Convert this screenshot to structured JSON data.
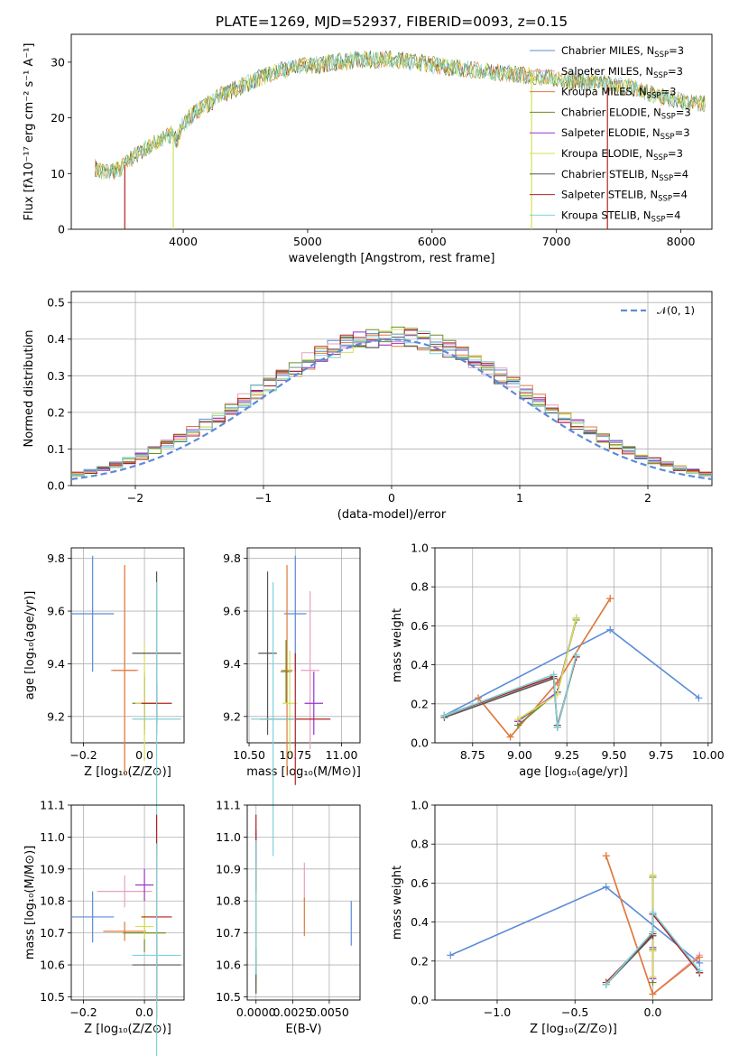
{
  "figure": {
    "title": "PLATE=1269, MJD=52937, FIBERID=0093, z=0.15",
    "colors": {
      "chabrier_miles": "#5B8BD9",
      "salpeter_miles": "#E6A0C4",
      "kroupa_miles": "#E07B39",
      "chabrier_elodie": "#6B8E23",
      "salpeter_elodie": "#9932CC",
      "kroupa_elodie": "#D4E157",
      "chabrier_stelib": "#555555",
      "salpeter_stelib": "#B22222",
      "kroupa_stelib": "#7DD3D8"
    }
  },
  "chart_data": [
    {
      "id": "spectrum",
      "type": "line",
      "xlabel": "wavelength [Angstrom, rest frame]",
      "ylabel": "Flux [fλ10⁻¹⁷ erg cm⁻² s⁻¹ A⁻¹]",
      "xlim": [
        3100,
        8250
      ],
      "ylim": [
        0,
        35
      ],
      "xticks": [
        "4000",
        "5000",
        "6000",
        "7000",
        "8000"
      ],
      "yticks": [
        "0",
        "10",
        "20",
        "30"
      ],
      "legend": [
        {
          "label": "Chabrier MILES, N",
          "sub": "SSP",
          "tail": "=3",
          "color": "chabrier_miles"
        },
        {
          "label": "Salpeter MILES, N",
          "sub": "SSP",
          "tail": "=3",
          "color": "salpeter_miles"
        },
        {
          "label": "Kroupa MILES, N",
          "sub": "SSP",
          "tail": "=3",
          "color": "kroupa_miles"
        },
        {
          "label": "Chabrier ELODIE, N",
          "sub": "SSP",
          "tail": "=3",
          "color": "chabrier_elodie"
        },
        {
          "label": "Salpeter ELODIE, N",
          "sub": "SSP",
          "tail": "=3",
          "color": "salpeter_elodie"
        },
        {
          "label": "Kroupa ELODIE, N",
          "sub": "SSP",
          "tail": "=3",
          "color": "kroupa_elodie"
        },
        {
          "label": "Chabrier STELIB, N",
          "sub": "SSP",
          "tail": "=4",
          "color": "chabrier_stelib"
        },
        {
          "label": "Salpeter STELIB, N",
          "sub": "SSP",
          "tail": "=4",
          "color": "salpeter_stelib"
        },
        {
          "label": "Kroupa STELIB, N",
          "sub": "SSP",
          "tail": "=4",
          "color": "kroupa_stelib"
        }
      ],
      "envelope": [
        [
          3290,
          11
        ],
        [
          3400,
          10
        ],
        [
          3500,
          11
        ],
        [
          3600,
          13
        ],
        [
          3700,
          14.5
        ],
        [
          3800,
          16
        ],
        [
          3900,
          17
        ],
        [
          3950,
          16
        ],
        [
          4000,
          19
        ],
        [
          4100,
          21
        ],
        [
          4200,
          22.5
        ],
        [
          4300,
          24
        ],
        [
          4400,
          25
        ],
        [
          4500,
          26
        ],
        [
          4600,
          27
        ],
        [
          4700,
          28
        ],
        [
          4800,
          28.5
        ],
        [
          4900,
          29
        ],
        [
          5000,
          29.5
        ],
        [
          5100,
          29.5
        ],
        [
          5200,
          30
        ],
        [
          5300,
          30
        ],
        [
          5400,
          30.5
        ],
        [
          5500,
          30.5
        ],
        [
          5600,
          30.5
        ],
        [
          5700,
          30.5
        ],
        [
          5800,
          30
        ],
        [
          5900,
          30
        ],
        [
          6000,
          29.5
        ],
        [
          6200,
          29
        ],
        [
          6400,
          28.5
        ],
        [
          6600,
          28
        ],
        [
          6800,
          27.5
        ],
        [
          7000,
          27
        ],
        [
          7200,
          26.5
        ],
        [
          7400,
          26
        ],
        [
          7600,
          25.5
        ],
        [
          7800,
          24
        ],
        [
          8000,
          23
        ],
        [
          8200,
          22.5
        ]
      ]
    },
    {
      "id": "residual_hist",
      "type": "bar",
      "xlabel": "(data-model)/error",
      "ylabel": "Normed distribution",
      "xlim": [
        -2.5,
        2.5
      ],
      "ylim": [
        0,
        0.53
      ],
      "xticks": [
        "−2",
        "−1",
        "0",
        "1",
        "2"
      ],
      "yticks": [
        "0.0",
        "0.1",
        "0.2",
        "0.3",
        "0.4",
        "0.5"
      ],
      "legend": [
        {
          "label": "𝒩(0, 1)",
          "color": "chabrier_miles"
        }
      ],
      "bin_width": 0.1
    },
    {
      "id": "age_vs_Z",
      "type": "scatter",
      "xlabel": "Z [log₁₀(Z/Z⊙)]",
      "ylabel": "age  [log₁₀(age/yr)]",
      "xlim": [
        -0.24,
        0.13
      ],
      "ylim": [
        9.1,
        9.84
      ],
      "xticks": [
        "−0.2",
        "0.0"
      ],
      "yticks": [
        "9.2",
        "9.4",
        "9.6",
        "9.8"
      ],
      "points": [
        {
          "x": -0.17,
          "y": 9.59,
          "xerr": 0.07,
          "yerr": 0.22,
          "color": "chabrier_miles"
        },
        {
          "x": -0.065,
          "y": 9.375,
          "xerr": 0.045,
          "yerr": 0.4,
          "color": "salpeter_miles"
        },
        {
          "x": -0.065,
          "y": 9.375,
          "xerr": 0.04,
          "yerr": 0.4,
          "color": "kroupa_miles"
        },
        {
          "x": 0.0,
          "y": 9.25,
          "xerr": 0.04,
          "yerr": 0.12,
          "color": "chabrier_elodie"
        },
        {
          "x": 0.0,
          "y": 9.25,
          "xerr": 0.03,
          "yerr": 0.1,
          "color": "salpeter_elodie"
        },
        {
          "x": 0.0,
          "y": 9.25,
          "xerr": 0.03,
          "yerr": 0.22,
          "color": "kroupa_elodie"
        },
        {
          "x": 0.04,
          "y": 9.44,
          "xerr": 0.08,
          "yerr": 0.31,
          "color": "chabrier_stelib"
        },
        {
          "x": 0.04,
          "y": 9.25,
          "xerr": 0.05,
          "yerr": 0.08,
          "color": "salpeter_stelib"
        },
        {
          "x": 0.04,
          "y": 9.19,
          "xerr": 0.08,
          "yerr": 0.52,
          "color": "kroupa_stelib"
        }
      ]
    },
    {
      "id": "age_vs_mass",
      "type": "scatter",
      "xlabel": "mass [log₁₀(M/M⊙)]",
      "ylabel": "",
      "xlim": [
        10.49,
        11.1
      ],
      "ylim": [
        9.1,
        9.84
      ],
      "xticks": [
        "10.50",
        "10.75",
        "11.00"
      ],
      "yticks": [
        "9.2",
        "9.4",
        "9.6",
        "9.8"
      ],
      "points": [
        {
          "x": 10.75,
          "y": 9.59,
          "xerr": 0.06,
          "yerr": 0.22,
          "color": "chabrier_miles"
        },
        {
          "x": 10.83,
          "y": 9.375,
          "xerr": 0.05,
          "yerr": 0.3,
          "color": "salpeter_miles"
        },
        {
          "x": 10.705,
          "y": 9.375,
          "xerr": 0.03,
          "yerr": 0.4,
          "color": "kroupa_miles"
        },
        {
          "x": 10.7,
          "y": 9.37,
          "xerr": 0.03,
          "yerr": 0.12,
          "color": "chabrier_elodie"
        },
        {
          "x": 10.85,
          "y": 9.25,
          "xerr": 0.05,
          "yerr": 0.12,
          "color": "salpeter_elodie"
        },
        {
          "x": 10.72,
          "y": 9.25,
          "xerr": 0.04,
          "yerr": 0.2,
          "color": "kroupa_elodie"
        },
        {
          "x": 10.6,
          "y": 9.44,
          "xerr": 0.05,
          "yerr": 0.31,
          "color": "chabrier_stelib"
        },
        {
          "x": 10.75,
          "y": 9.19,
          "xerr": 0.19,
          "yerr": 0.25,
          "color": "salpeter_stelib"
        },
        {
          "x": 10.63,
          "y": 9.19,
          "xerr": 0.12,
          "yerr": 0.52,
          "color": "kroupa_stelib"
        }
      ]
    },
    {
      "id": "massweight_vs_age",
      "type": "line",
      "xlabel": "age  [log₁₀(age/yr)]",
      "ylabel": "mass weight",
      "xlim": [
        8.55,
        10.02
      ],
      "ylim": [
        0,
        1
      ],
      "xticks": [
        "8.75",
        "9.00",
        "9.25",
        "9.50",
        "9.75",
        "10.00"
      ],
      "yticks": [
        "0.0",
        "0.2",
        "0.4",
        "0.6",
        "0.8",
        "1.0"
      ],
      "series": [
        {
          "color": "chabrier_miles",
          "x": [
            8.6,
            9.48,
            9.95
          ],
          "y": [
            0.14,
            0.58,
            0.23
          ]
        },
        {
          "color": "salpeter_miles",
          "x": [
            8.78,
            8.95,
            9.2,
            9.48
          ],
          "y": [
            0.23,
            0.03,
            0.31,
            0.74
          ]
        },
        {
          "color": "kroupa_miles",
          "x": [
            8.78,
            8.95,
            9.2,
            9.48
          ],
          "y": [
            0.23,
            0.03,
            0.31,
            0.74
          ]
        },
        {
          "color": "chabrier_elodie",
          "x": [
            8.99,
            9.2,
            9.3
          ],
          "y": [
            0.09,
            0.26,
            0.63
          ]
        },
        {
          "color": "salpeter_elodie",
          "x": [
            8.99,
            9.2,
            9.3
          ],
          "y": [
            0.11,
            0.26,
            0.64
          ]
        },
        {
          "color": "kroupa_elodie",
          "x": [
            8.99,
            9.2,
            9.3
          ],
          "y": [
            0.12,
            0.25,
            0.64
          ]
        },
        {
          "color": "chabrier_stelib",
          "x": [
            8.6,
            9.18,
            9.2,
            9.3
          ],
          "y": [
            0.13,
            0.33,
            0.08,
            0.44
          ]
        },
        {
          "color": "salpeter_stelib",
          "x": [
            8.6,
            9.18,
            9.2,
            9.3
          ],
          "y": [
            0.14,
            0.34,
            0.09,
            0.44
          ]
        },
        {
          "color": "kroupa_stelib",
          "x": [
            8.6,
            9.18,
            9.2,
            9.3
          ],
          "y": [
            0.14,
            0.35,
            0.08,
            0.45
          ]
        }
      ]
    },
    {
      "id": "mass_vs_Z",
      "type": "scatter",
      "xlabel": "Z [log₁₀(Z/Z⊙)]",
      "ylabel": "mass [log₁₀(M/M⊙)]",
      "xlim": [
        -0.24,
        0.13
      ],
      "ylim": [
        10.49,
        11.1
      ],
      "xticks": [
        "−0.2",
        "0.0"
      ],
      "yticks": [
        "10.5",
        "10.6",
        "10.7",
        "10.8",
        "10.9",
        "11.0",
        "11.1"
      ],
      "points": [
        {
          "x": -0.17,
          "y": 10.75,
          "xerr": 0.07,
          "yerr": 0.08,
          "color": "chabrier_miles"
        },
        {
          "x": -0.065,
          "y": 10.83,
          "xerr": 0.09,
          "yerr": 0.05,
          "color": "salpeter_miles"
        },
        {
          "x": -0.065,
          "y": 10.705,
          "xerr": 0.07,
          "yerr": 0.03,
          "color": "kroupa_miles"
        },
        {
          "x": 0.0,
          "y": 10.7,
          "xerr": 0.07,
          "yerr": 0.06,
          "color": "chabrier_elodie"
        },
        {
          "x": 0.0,
          "y": 10.85,
          "xerr": 0.03,
          "yerr": 0.05,
          "color": "salpeter_elodie"
        },
        {
          "x": 0.0,
          "y": 10.72,
          "xerr": 0.03,
          "yerr": 0.04,
          "color": "kroupa_elodie"
        },
        {
          "x": 0.04,
          "y": 10.6,
          "xerr": 0.08,
          "yerr": 0.09,
          "color": "chabrier_stelib"
        },
        {
          "x": 0.04,
          "y": 10.75,
          "xerr": 0.05,
          "yerr": 0.32,
          "color": "salpeter_stelib"
        },
        {
          "x": 0.04,
          "y": 10.63,
          "xerr": 0.08,
          "yerr": 0.35,
          "color": "kroupa_stelib"
        }
      ]
    },
    {
      "id": "mass_vs_ebv",
      "type": "scatter",
      "xlabel": "E(B-V)",
      "ylabel": "",
      "xlim": [
        -0.0006,
        0.0071
      ],
      "ylim": [
        10.49,
        11.1
      ],
      "xticks": [
        "0.0000",
        "0.0025",
        "0.0050"
      ],
      "yticks": [
        "10.5",
        "10.6",
        "10.7",
        "10.8",
        "10.9",
        "11.0",
        "11.1"
      ],
      "points": [
        {
          "x": 0.0065,
          "y": 10.73,
          "yerr": 0.07,
          "color": "chabrier_miles"
        },
        {
          "x": 0.0033,
          "y": 10.86,
          "yerr": 0.06,
          "color": "salpeter_miles"
        },
        {
          "x": 0.0033,
          "y": 10.75,
          "yerr": 0.06,
          "color": "kroupa_miles"
        },
        {
          "x": 0.0,
          "y": 10.7,
          "yerr": 0.15,
          "color": "chabrier_elodie"
        },
        {
          "x": 0.0,
          "y": 10.82,
          "yerr": 0.2,
          "color": "salpeter_elodie"
        },
        {
          "x": 0.0,
          "y": 10.72,
          "yerr": 0.2,
          "color": "kroupa_elodie"
        },
        {
          "x": 0.0,
          "y": 10.58,
          "yerr": 0.07,
          "color": "chabrier_stelib"
        },
        {
          "x": 0.0,
          "y": 10.95,
          "yerr": 0.12,
          "color": "salpeter_stelib"
        },
        {
          "x": 0.0,
          "y": 10.78,
          "yerr": 0.21,
          "color": "kroupa_stelib"
        }
      ]
    },
    {
      "id": "massweight_vs_Z",
      "type": "line",
      "xlabel": "Z [log₁₀(Z/Z⊙)]",
      "ylabel": "mass weight",
      "xlim": [
        -1.4,
        0.38
      ],
      "ylim": [
        0,
        1
      ],
      "xticks": [
        "−1.0",
        "−0.5",
        "0.0"
      ],
      "yticks": [
        "0.0",
        "0.2",
        "0.4",
        "0.6",
        "0.8",
        "1.0"
      ],
      "series": [
        {
          "color": "chabrier_miles",
          "x": [
            -1.3,
            -0.3,
            0.3
          ],
          "y": [
            0.23,
            0.58,
            0.19
          ]
        },
        {
          "color": "salpeter_miles",
          "x": [
            -0.3,
            0.0,
            0.3
          ],
          "y": [
            0.74,
            0.03,
            0.23
          ]
        },
        {
          "color": "kroupa_miles",
          "x": [
            -0.3,
            0.0,
            0.3
          ],
          "y": [
            0.74,
            0.03,
            0.22
          ]
        },
        {
          "color": "chabrier_elodie",
          "x": [
            0.0,
            0.0,
            0.0
          ],
          "y": [
            0.09,
            0.26,
            0.63
          ]
        },
        {
          "color": "salpeter_elodie",
          "x": [
            0.0,
            0.0,
            0.0
          ],
          "y": [
            0.11,
            0.27,
            0.64
          ]
        },
        {
          "color": "kroupa_elodie",
          "x": [
            0.0,
            0.0,
            0.0
          ],
          "y": [
            0.12,
            0.25,
            0.64
          ]
        },
        {
          "color": "chabrier_stelib",
          "x": [
            -0.3,
            0.0,
            0.0,
            0.3
          ],
          "y": [
            0.08,
            0.33,
            0.44,
            0.14
          ]
        },
        {
          "color": "salpeter_stelib",
          "x": [
            -0.3,
            0.0,
            0.0,
            0.3
          ],
          "y": [
            0.09,
            0.34,
            0.44,
            0.14
          ]
        },
        {
          "color": "kroupa_stelib",
          "x": [
            -0.3,
            0.0,
            0.0,
            0.3
          ],
          "y": [
            0.08,
            0.35,
            0.45,
            0.15
          ]
        }
      ]
    }
  ]
}
